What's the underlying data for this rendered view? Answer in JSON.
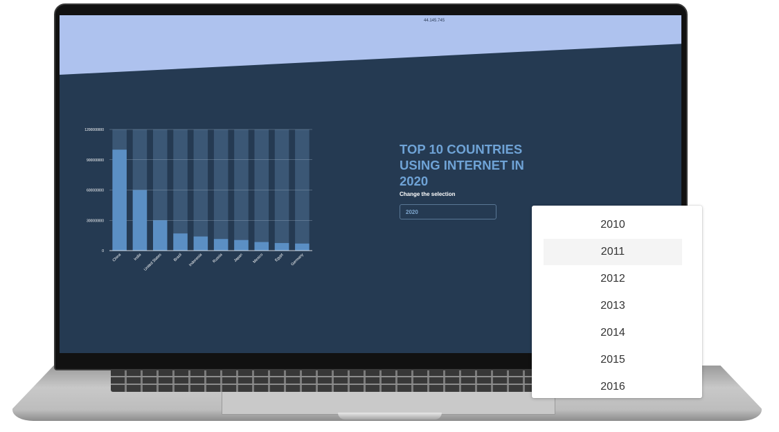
{
  "banner": {
    "stat": "44.145.745"
  },
  "page": {
    "title": "TOP 10 COUNTRIES USING INTERNET IN 2020",
    "selection_label": "Change the selection",
    "selected_year": "2020"
  },
  "dropdown": {
    "options": [
      "2010",
      "2011",
      "2012",
      "2013",
      "2014",
      "2015",
      "2016"
    ],
    "hovered_option": "2011"
  },
  "colors": {
    "screen_bg": "#253a52",
    "banner": "#aec2ee",
    "title": "#6fa3d6",
    "bar_fill": "#5b8fc4",
    "bar_track": "#3b5775"
  },
  "chart_data": {
    "type": "bar",
    "categories": [
      "China",
      "India",
      "United States",
      "Brazil",
      "Indonesia",
      "Russia",
      "Japan",
      "Mexico",
      "Egypt",
      "Germany"
    ],
    "values": [
      1000000000,
      600000000,
      300000000,
      170000000,
      140000000,
      115000000,
      105000000,
      85000000,
      75000000,
      70000000
    ],
    "yticks": [
      "0",
      "300000000",
      "600000000",
      "900000000",
      "1200000000"
    ],
    "ylim": [
      0,
      1200000000
    ],
    "grid": true
  }
}
